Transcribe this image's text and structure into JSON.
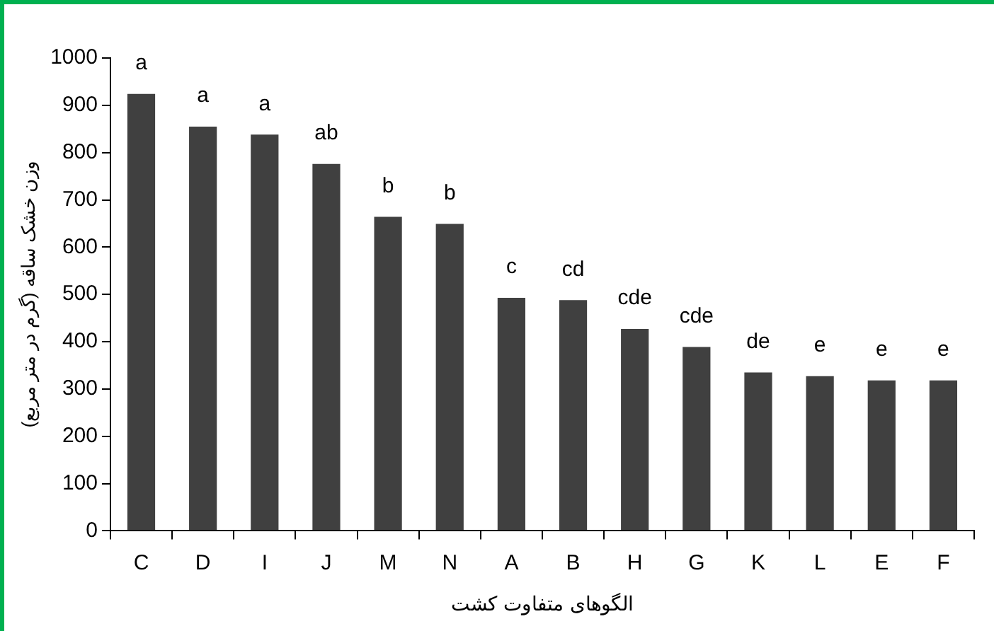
{
  "chart_data": {
    "type": "bar",
    "xlabel": "الگوهای متفاوت کشت",
    "ylabel": "وزن خشک ساقه (گرم در متر مربع)",
    "categories": [
      "C",
      "D",
      "I",
      "J",
      "M",
      "N",
      "A",
      "B",
      "H",
      "G",
      "K",
      "L",
      "E",
      "F"
    ],
    "values": [
      924,
      855,
      838,
      776,
      664,
      649,
      493,
      488,
      427,
      389,
      335,
      327,
      318,
      318
    ],
    "color": "#404040",
    "ylim": [
      0,
      1000
    ],
    "yticks": [
      0,
      100,
      200,
      300,
      400,
      500,
      600,
      700,
      800,
      900,
      1000
    ],
    "grid": false,
    "legend": false,
    "annotations": [
      {
        "text": "a",
        "x": "C",
        "y": 924
      },
      {
        "text": "a",
        "x": "D",
        "y": 855
      },
      {
        "text": "a",
        "x": "I",
        "y": 838
      },
      {
        "text": "ab",
        "x": "J",
        "y": 776
      },
      {
        "text": "b",
        "x": "M",
        "y": 664
      },
      {
        "text": "b",
        "x": "N",
        "y": 649
      },
      {
        "text": "c",
        "x": "A",
        "y": 493
      },
      {
        "text": "cd",
        "x": "B",
        "y": 488
      },
      {
        "text": "cde",
        "x": "H",
        "y": 427
      },
      {
        "text": "cde",
        "x": "G",
        "y": 389
      },
      {
        "text": "de",
        "x": "K",
        "y": 335
      },
      {
        "text": "e",
        "x": "L",
        "y": 327
      },
      {
        "text": "e",
        "x": "E",
        "y": 318
      },
      {
        "text": "e",
        "x": "F",
        "y": 318
      }
    ]
  }
}
